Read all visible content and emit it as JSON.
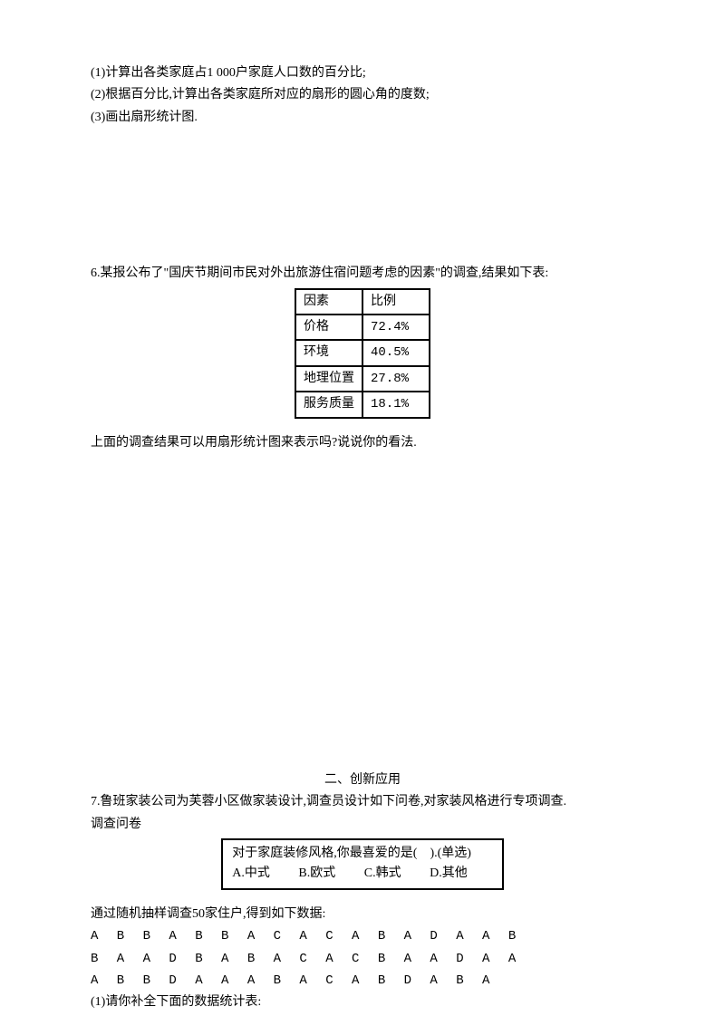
{
  "q5": {
    "item1": "(1)计算出各类家庭占1 000户家庭人口数的百分比;",
    "item2": "(2)根据百分比,计算出各类家庭所对应的扇形的圆心角的度数;",
    "item3": "(3)画出扇形统计图."
  },
  "q6": {
    "intro": "6.某报公布了\"国庆节期间市民对外出旅游住宿问题考虑的因素\"的调查,结果如下表:",
    "table": {
      "rows": [
        [
          "因素",
          "比例"
        ],
        [
          "价格",
          "72.4%"
        ],
        [
          "环境",
          "40.5%"
        ],
        [
          "地理位置",
          "27.8%"
        ],
        [
          "服务质量",
          "18.1%"
        ]
      ]
    },
    "after": "上面的调查结果可以用扇形统计图来表示吗?说说你的看法."
  },
  "section2_header": "二、创新应用",
  "q7": {
    "intro": "7.鲁班家装公司为芙蓉小区做家装设计,调查员设计如下问卷,对家装风格进行专项调查.",
    "label": "调查问卷",
    "box_q": "对于家庭装修风格,你最喜爱的是(    ).(单选)",
    "optA": "A.中式",
    "optB": "B.欧式",
    "optC": "C.韩式",
    "optD": "D.其他",
    "sample_intro": "通过随机抽样调查50家住户,得到如下数据:",
    "data1": "A B B A B B A C A C A B A D A A B",
    "data2": "B A A D B A B A C A C B A A D A A",
    "data3": "A B B D A A A B A C A B D A B A",
    "task1": "(1)请你补全下面的数据统计表:"
  }
}
